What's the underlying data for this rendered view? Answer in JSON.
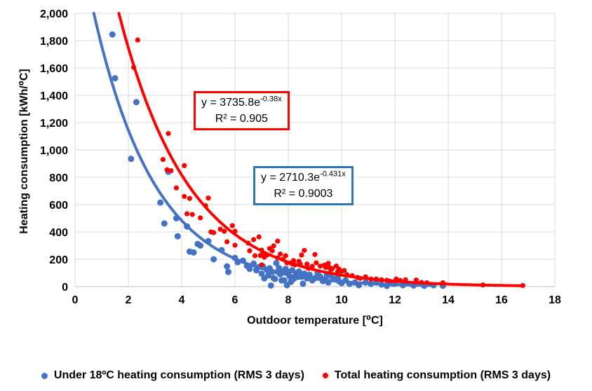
{
  "chart_data": {
    "type": "scatter",
    "x_axis": {
      "label": "Outdoor temperature [⁰C]",
      "min": 0,
      "max": 18,
      "step": 2,
      "tick_labels": [
        "0",
        "2",
        "4",
        "6",
        "8",
        "10",
        "12",
        "14",
        "16",
        "18"
      ]
    },
    "y_axis": {
      "label": "Heating consumption [kWh/⁰C]",
      "min": 0,
      "max": 2000,
      "step": 200,
      "tick_labels": [
        "0",
        "200",
        "400",
        "600",
        "800",
        "1,000",
        "1,200",
        "1,400",
        "1,600",
        "1,800",
        "2,000"
      ]
    },
    "grid": true,
    "gridline_color": "#D9D9D9",
    "axis_line_color": "#BFBFBF",
    "legend_position": "bottom",
    "series": [
      {
        "name": "Under 18ºC heating consumption (RMS 3 days)",
        "color": "#4472C4",
        "marker_radius": 4.5,
        "points": [
          [
            1.4,
            1845
          ],
          [
            1.5,
            1525
          ],
          [
            2.3,
            1350
          ],
          [
            2.1,
            935
          ],
          [
            3.2,
            615
          ],
          [
            3.35,
            462
          ],
          [
            3.5,
            840
          ],
          [
            3.8,
            500
          ],
          [
            3.85,
            368
          ],
          [
            4.2,
            440
          ],
          [
            4.3,
            256
          ],
          [
            4.45,
            250
          ],
          [
            4.6,
            312
          ],
          [
            4.7,
            300
          ],
          [
            5.0,
            333
          ],
          [
            5.2,
            200
          ],
          [
            5.5,
            267
          ],
          [
            5.7,
            148
          ],
          [
            5.75,
            107
          ],
          [
            6.0,
            210
          ],
          [
            6.1,
            178
          ],
          [
            6.3,
            190
          ],
          [
            6.45,
            152
          ],
          [
            6.55,
            130
          ],
          [
            6.7,
            168
          ],
          [
            6.8,
            120
          ],
          [
            6.9,
            143
          ],
          [
            7.0,
            95
          ],
          [
            7.05,
            149
          ],
          [
            7.1,
            60
          ],
          [
            7.2,
            123
          ],
          [
            7.25,
            82
          ],
          [
            7.3,
            134
          ],
          [
            7.35,
            8
          ],
          [
            7.4,
            108
          ],
          [
            7.45,
            62
          ],
          [
            7.5,
            56
          ],
          [
            7.55,
            172
          ],
          [
            7.6,
            108
          ],
          [
            7.65,
            135
          ],
          [
            7.7,
            90
          ],
          [
            7.75,
            45
          ],
          [
            7.8,
            113
          ],
          [
            7.85,
            46
          ],
          [
            7.9,
            130
          ],
          [
            7.95,
            10
          ],
          [
            8.0,
            108
          ],
          [
            8.05,
            75
          ],
          [
            8.1,
            35
          ],
          [
            8.15,
            120
          ],
          [
            8.2,
            56
          ],
          [
            8.3,
            97
          ],
          [
            8.35,
            70
          ],
          [
            8.4,
            110
          ],
          [
            8.5,
            72
          ],
          [
            8.55,
            21
          ],
          [
            8.6,
            95
          ],
          [
            8.7,
            60
          ],
          [
            8.8,
            87
          ],
          [
            8.9,
            45
          ],
          [
            9.0,
            62
          ],
          [
            9.1,
            100
          ],
          [
            9.2,
            72
          ],
          [
            9.3,
            40
          ],
          [
            9.4,
            56
          ],
          [
            9.45,
            87
          ],
          [
            9.5,
            30
          ],
          [
            9.6,
            80
          ],
          [
            9.7,
            55
          ],
          [
            9.85,
            67
          ],
          [
            9.9,
            40
          ],
          [
            10.0,
            25
          ],
          [
            10.15,
            46
          ],
          [
            10.3,
            20
          ],
          [
            10.5,
            30
          ],
          [
            10.65,
            10
          ],
          [
            10.9,
            30
          ],
          [
            11.1,
            20
          ],
          [
            11.3,
            30
          ],
          [
            11.5,
            15
          ],
          [
            11.7,
            5
          ],
          [
            11.9,
            22
          ],
          [
            12.0,
            20
          ],
          [
            12.3,
            10
          ],
          [
            12.7,
            8
          ],
          [
            13.1,
            6
          ],
          [
            13.45,
            10
          ],
          [
            13.8,
            6
          ]
        ]
      },
      {
        "name": "Total heating consumption (RMS 3 days)",
        "color": "#FF0000",
        "marker_radius": 3.6,
        "points": [
          [
            2.35,
            1805
          ],
          [
            2.2,
            1605
          ],
          [
            3.5,
            1120
          ],
          [
            3.3,
            930
          ],
          [
            3.45,
            855
          ],
          [
            3.6,
            848
          ],
          [
            4.1,
            885
          ],
          [
            3.8,
            722
          ],
          [
            4.1,
            660
          ],
          [
            4.3,
            645
          ],
          [
            5.0,
            648
          ],
          [
            4.9,
            592
          ],
          [
            4.2,
            533
          ],
          [
            4.4,
            528
          ],
          [
            4.7,
            503
          ],
          [
            5.1,
            400
          ],
          [
            5.2,
            395
          ],
          [
            5.45,
            420
          ],
          [
            5.6,
            405
          ],
          [
            5.9,
            446
          ],
          [
            6.0,
            405
          ],
          [
            5.7,
            328
          ],
          [
            6.0,
            303
          ],
          [
            6.5,
            318
          ],
          [
            6.55,
            262
          ],
          [
            6.7,
            344
          ],
          [
            6.75,
            226
          ],
          [
            6.9,
            364
          ],
          [
            6.95,
            228
          ],
          [
            7.0,
            267
          ],
          [
            7.05,
            246
          ],
          [
            7.1,
            215
          ],
          [
            7.0,
            159
          ],
          [
            7.2,
            231
          ],
          [
            7.3,
            279
          ],
          [
            7.4,
            262
          ],
          [
            7.45,
            298
          ],
          [
            7.6,
            333
          ],
          [
            7.6,
            210
          ],
          [
            7.7,
            238
          ],
          [
            7.8,
            200
          ],
          [
            7.9,
            226
          ],
          [
            7.95,
            173
          ],
          [
            8.1,
            174
          ],
          [
            8.15,
            165
          ],
          [
            8.2,
            190
          ],
          [
            8.25,
            159
          ],
          [
            8.4,
            185
          ],
          [
            8.45,
            165
          ],
          [
            8.5,
            231
          ],
          [
            8.6,
            265
          ],
          [
            8.7,
            165
          ],
          [
            8.75,
            133
          ],
          [
            8.9,
            149
          ],
          [
            9.0,
            235
          ],
          [
            9.05,
            174
          ],
          [
            9.2,
            150
          ],
          [
            9.35,
            157
          ],
          [
            9.4,
            140
          ],
          [
            9.5,
            170
          ],
          [
            9.55,
            138
          ],
          [
            9.6,
            123
          ],
          [
            9.65,
            132
          ],
          [
            9.8,
            150
          ],
          [
            9.85,
            108
          ],
          [
            9.9,
            128
          ],
          [
            10.0,
            113
          ],
          [
            10.1,
            118
          ],
          [
            10.2,
            87
          ],
          [
            10.4,
            80
          ],
          [
            10.6,
            67
          ],
          [
            10.7,
            60
          ],
          [
            10.9,
            72
          ],
          [
            11.1,
            55
          ],
          [
            11.3,
            55
          ],
          [
            11.5,
            50
          ],
          [
            11.7,
            46
          ],
          [
            11.8,
            40
          ],
          [
            12.0,
            38
          ],
          [
            12.05,
            55
          ],
          [
            12.2,
            45
          ],
          [
            12.4,
            50
          ],
          [
            12.8,
            48
          ],
          [
            13.0,
            30
          ],
          [
            13.2,
            28
          ],
          [
            13.8,
            28
          ],
          [
            15.3,
            12
          ],
          [
            16.8,
            8
          ]
        ]
      }
    ],
    "trendlines": [
      {
        "series": 0,
        "color": "#4472C4",
        "a": 2710.3,
        "b": -0.431,
        "x_start": 0.705,
        "x_end": 13.5,
        "width": 4
      },
      {
        "series": 1,
        "color": "#FF0000",
        "a": 3735.8,
        "b": -0.38,
        "x_start": 1.645,
        "x_end": 16.8,
        "width": 4
      }
    ],
    "annotations": [
      {
        "id": "red",
        "eq_base": "y = 3735.8e",
        "eq_exp": "-0.38x",
        "r2": "R² = 0.905",
        "border_color": "#FF0000"
      },
      {
        "id": "blue",
        "eq_base": "y = 2710.3e",
        "eq_exp": "-0.431x",
        "r2": "R² = 0.9003",
        "border_color": "#2E75B6"
      }
    ],
    "legend": [
      {
        "label": "Under 18ºC heating consumption (RMS 3 days)",
        "color": "#4472C4"
      },
      {
        "label": "Total heating consumption (RMS 3 days)",
        "color": "#FF0000"
      }
    ]
  },
  "titles": {
    "x_axis": "Outdoor temperature [⁰C]",
    "y_axis": "Heating consumption [kWh/⁰C]"
  }
}
